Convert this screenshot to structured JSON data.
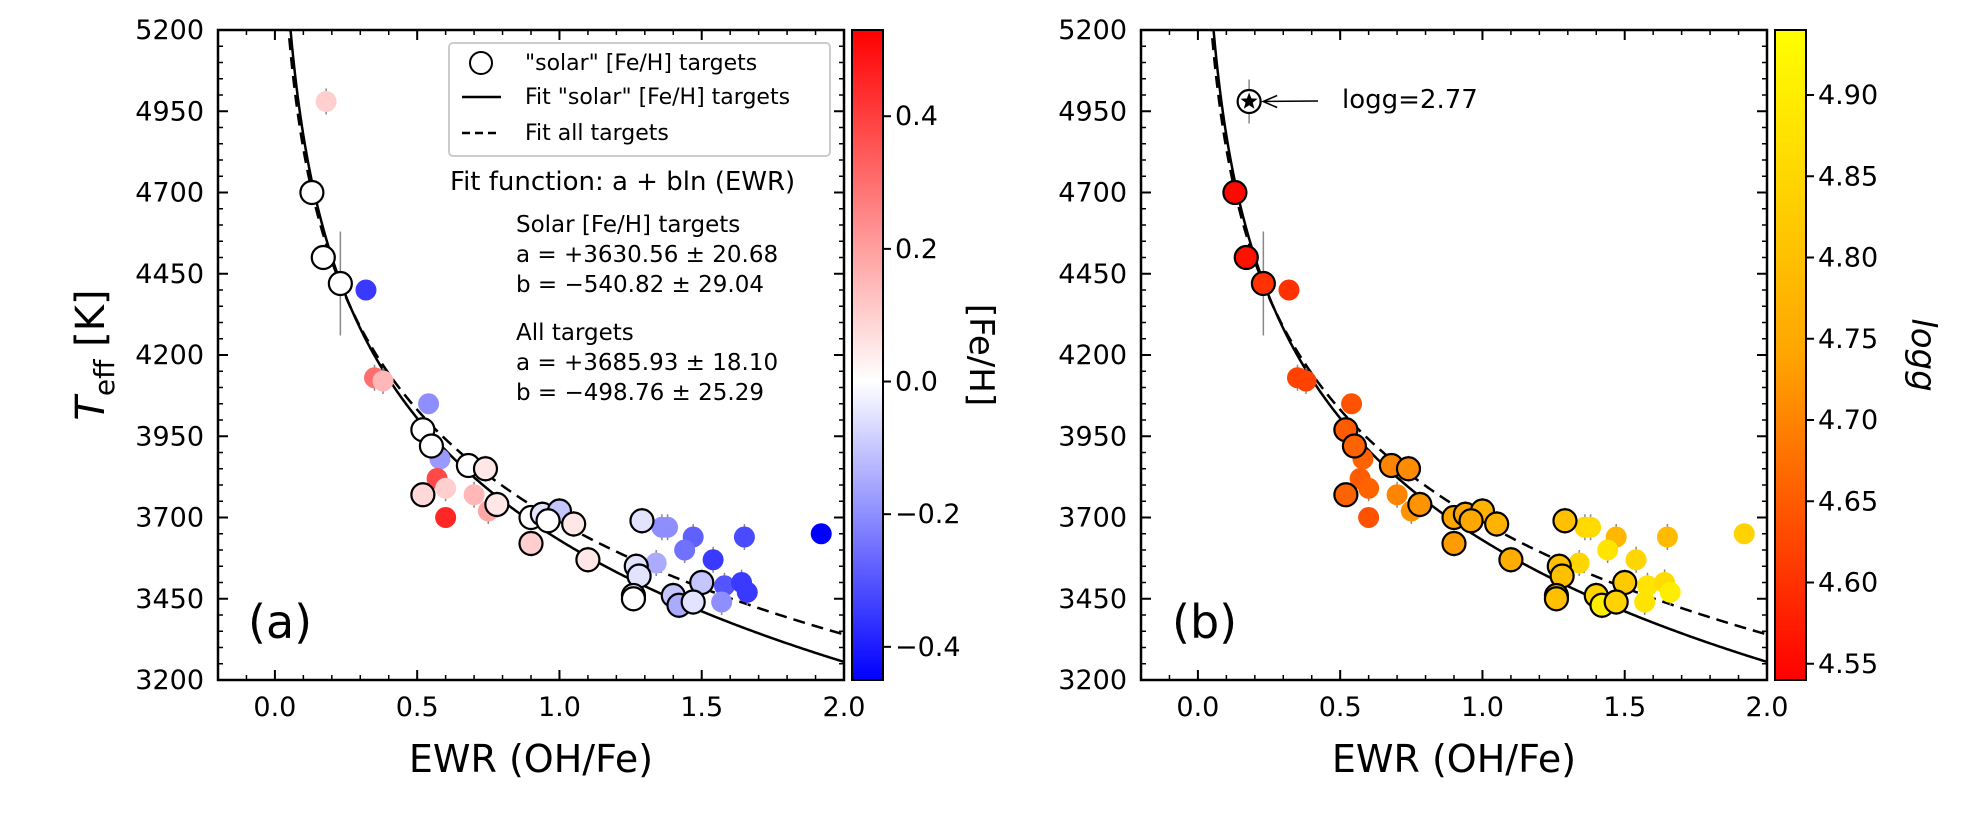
{
  "figure": {
    "panels": [
      {
        "label": "(a)",
        "xlabel": "EWR (OH/Fe)",
        "ylabel_main": "T",
        "ylabel_sub": "eff",
        "ylabel_unit": " [K]",
        "colorbar_label": "[Fe/H]"
      },
      {
        "label": "(b)",
        "xlabel": "EWR (OH/Fe)",
        "colorbar_label": "logg"
      }
    ],
    "legend": {
      "solar_targets": "\"solar\" [Fe/H] targets",
      "fit_solar": "Fit \"solar\" [Fe/H] targets",
      "fit_all": "Fit all targets"
    },
    "annotations": {
      "fit_function": "Fit function: a + bln (EWR)",
      "solar_header": "Solar [Fe/H] targets",
      "solar_a": "a = +3630.56 ± 20.68",
      "solar_b": "b = −540.82 ± 29.04",
      "all_header": "All targets",
      "all_a": "a = +3685.93 ± 18.10",
      "all_b": "b = −498.76 ± 25.29",
      "giant_note": "logg=2.77"
    },
    "colors": {
      "feh_map": [
        "#0000ff",
        "#ffffff",
        "#ff0000"
      ],
      "logg_map": [
        "#ff0000",
        "#ffa500",
        "#ffff00"
      ]
    }
  },
  "chart_data": [
    {
      "type": "scatter",
      "panel": "a",
      "xlabel": "EWR (OH/Fe)",
      "ylabel": "Teff [K]",
      "xlim": [
        -0.2,
        2.0
      ],
      "ylim": [
        3200,
        5200
      ],
      "xticks": [
        0.0,
        0.5,
        1.0,
        1.5,
        2.0
      ],
      "yticks": [
        3200,
        3450,
        3700,
        3950,
        4200,
        4450,
        4700,
        4950,
        5200
      ],
      "legend_position": "upper-right",
      "color_by": "[Fe/H]",
      "colorbar": {
        "label": "[Fe/H]",
        "range": [
          -0.45,
          0.53
        ],
        "ticks": [
          -0.4,
          -0.2,
          0.0,
          0.2,
          0.4
        ]
      },
      "fits": [
        {
          "name": "Fit \"solar\" [Fe/H] targets",
          "style": "solid",
          "a": 3630.56,
          "b": -540.82
        },
        {
          "name": "Fit all targets",
          "style": "dashed",
          "a": 3685.93,
          "b": -498.76
        }
      ],
      "points": [
        {
          "x": 0.18,
          "y": 4980,
          "err": 40,
          "feh": 0.1,
          "solar": false
        },
        {
          "x": 0.13,
          "y": 4700,
          "err": 0,
          "feh": 0.0,
          "solar": true
        },
        {
          "x": 0.17,
          "y": 4500,
          "err": 0,
          "feh": 0.0,
          "solar": true
        },
        {
          "x": 0.23,
          "y": 4420,
          "err": 160,
          "feh": 0.0,
          "solar": true
        },
        {
          "x": 0.32,
          "y": 4400,
          "err": 0,
          "feh": -0.35,
          "solar": false
        },
        {
          "x": 0.35,
          "y": 4130,
          "err": 40,
          "feh": 0.3,
          "solar": false
        },
        {
          "x": 0.38,
          "y": 4120,
          "err": 40,
          "feh": 0.15,
          "solar": false
        },
        {
          "x": 0.54,
          "y": 4050,
          "err": 0,
          "feh": -0.2,
          "solar": false
        },
        {
          "x": 0.52,
          "y": 3970,
          "err": 0,
          "feh": 0.0,
          "solar": true
        },
        {
          "x": 0.55,
          "y": 3920,
          "err": 0,
          "feh": 0.0,
          "solar": true
        },
        {
          "x": 0.58,
          "y": 3880,
          "err": 40,
          "feh": -0.18,
          "solar": false
        },
        {
          "x": 0.68,
          "y": 3860,
          "err": 0,
          "feh": 0.0,
          "solar": true
        },
        {
          "x": 0.74,
          "y": 3850,
          "err": 40,
          "feh": 0.05,
          "solar": true
        },
        {
          "x": 0.57,
          "y": 3820,
          "err": 40,
          "feh": 0.38,
          "solar": false
        },
        {
          "x": 0.6,
          "y": 3790,
          "err": 40,
          "feh": 0.1,
          "solar": false
        },
        {
          "x": 0.52,
          "y": 3770,
          "err": 0,
          "feh": 0.08,
          "solar": true
        },
        {
          "x": 0.7,
          "y": 3770,
          "err": 40,
          "feh": 0.15,
          "solar": false
        },
        {
          "x": 0.78,
          "y": 3740,
          "err": 40,
          "feh": 0.05,
          "solar": true
        },
        {
          "x": 0.75,
          "y": 3720,
          "err": 40,
          "feh": 0.18,
          "solar": false
        },
        {
          "x": 0.6,
          "y": 3700,
          "err": 0,
          "feh": 0.45,
          "solar": false
        },
        {
          "x": 0.9,
          "y": 3700,
          "err": 0,
          "feh": 0.0,
          "solar": true
        },
        {
          "x": 0.94,
          "y": 3710,
          "err": 40,
          "feh": -0.05,
          "solar": true
        },
        {
          "x": 1.0,
          "y": 3720,
          "err": 40,
          "feh": -0.1,
          "solar": true
        },
        {
          "x": 0.96,
          "y": 3690,
          "err": 0,
          "feh": 0.0,
          "solar": true
        },
        {
          "x": 1.05,
          "y": 3680,
          "err": 40,
          "feh": 0.05,
          "solar": true
        },
        {
          "x": 0.9,
          "y": 3620,
          "err": 40,
          "feh": 0.1,
          "solar": true
        },
        {
          "x": 1.1,
          "y": 3570,
          "err": 40,
          "feh": 0.05,
          "solar": true
        },
        {
          "x": 1.29,
          "y": 3690,
          "err": 40,
          "feh": -0.05,
          "solar": true
        },
        {
          "x": 1.36,
          "y": 3670,
          "err": 40,
          "feh": -0.2,
          "solar": false
        },
        {
          "x": 1.38,
          "y": 3670,
          "err": 40,
          "feh": -0.2,
          "solar": false
        },
        {
          "x": 1.47,
          "y": 3640,
          "err": 40,
          "feh": -0.28,
          "solar": false
        },
        {
          "x": 1.65,
          "y": 3640,
          "err": 40,
          "feh": -0.32,
          "solar": false
        },
        {
          "x": 1.92,
          "y": 3650,
          "err": 0,
          "feh": -0.45,
          "solar": false
        },
        {
          "x": 1.44,
          "y": 3600,
          "err": 40,
          "feh": -0.25,
          "solar": false
        },
        {
          "x": 1.54,
          "y": 3570,
          "err": 40,
          "feh": -0.35,
          "solar": false
        },
        {
          "x": 1.27,
          "y": 3550,
          "err": 40,
          "feh": -0.05,
          "solar": true
        },
        {
          "x": 1.34,
          "y": 3560,
          "err": 40,
          "feh": -0.15,
          "solar": false
        },
        {
          "x": 1.28,
          "y": 3520,
          "err": 40,
          "feh": -0.05,
          "solar": true
        },
        {
          "x": 1.5,
          "y": 3500,
          "err": 40,
          "feh": -0.1,
          "solar": true
        },
        {
          "x": 1.58,
          "y": 3490,
          "err": 40,
          "feh": -0.3,
          "solar": false
        },
        {
          "x": 1.64,
          "y": 3500,
          "err": 40,
          "feh": -0.35,
          "solar": false
        },
        {
          "x": 1.66,
          "y": 3470,
          "err": 40,
          "feh": -0.35,
          "solar": false
        },
        {
          "x": 1.26,
          "y": 3460,
          "err": 40,
          "feh": 0.0,
          "solar": true
        },
        {
          "x": 1.26,
          "y": 3450,
          "err": 40,
          "feh": 0.0,
          "solar": true
        },
        {
          "x": 1.4,
          "y": 3460,
          "err": 40,
          "feh": -0.1,
          "solar": true
        },
        {
          "x": 1.42,
          "y": 3430,
          "err": 40,
          "feh": -0.15,
          "solar": true
        },
        {
          "x": 1.47,
          "y": 3440,
          "err": 40,
          "feh": -0.05,
          "solar": true
        },
        {
          "x": 1.57,
          "y": 3440,
          "err": 40,
          "feh": -0.2,
          "solar": false
        }
      ]
    },
    {
      "type": "scatter",
      "panel": "b",
      "xlabel": "EWR (OH/Fe)",
      "xlim": [
        -0.2,
        2.0
      ],
      "ylim": [
        3200,
        5200
      ],
      "xticks": [
        0.0,
        0.5,
        1.0,
        1.5,
        2.0
      ],
      "yticks": [
        3200,
        3450,
        3700,
        3950,
        4200,
        4450,
        4700,
        4950,
        5200
      ],
      "color_by": "logg",
      "colorbar": {
        "label": "logg",
        "range": [
          4.54,
          4.94
        ],
        "ticks": [
          4.55,
          4.6,
          4.65,
          4.7,
          4.75,
          4.8,
          4.85,
          4.9
        ]
      },
      "fits": [
        {
          "name": "Fit \"solar\" [Fe/H] targets",
          "style": "solid",
          "a": 3630.56,
          "b": -540.82
        },
        {
          "name": "Fit all targets",
          "style": "dashed",
          "a": 3685.93,
          "b": -498.76
        }
      ],
      "giant": {
        "x": 0.18,
        "y": 4980,
        "logg": 2.77
      },
      "points": [
        {
          "x": 0.13,
          "y": 4700,
          "err": 0,
          "logg": 4.55,
          "solar": true
        },
        {
          "x": 0.17,
          "y": 4500,
          "err": 0,
          "logg": 4.56,
          "solar": true
        },
        {
          "x": 0.23,
          "y": 4420,
          "err": 160,
          "logg": 4.6,
          "solar": true
        },
        {
          "x": 0.32,
          "y": 4400,
          "err": 0,
          "logg": 4.6,
          "solar": false
        },
        {
          "x": 0.35,
          "y": 4130,
          "err": 40,
          "logg": 4.62,
          "solar": false
        },
        {
          "x": 0.38,
          "y": 4120,
          "err": 40,
          "logg": 4.62,
          "solar": false
        },
        {
          "x": 0.54,
          "y": 4050,
          "err": 0,
          "logg": 4.64,
          "solar": false
        },
        {
          "x": 0.52,
          "y": 3970,
          "err": 0,
          "logg": 4.65,
          "solar": true
        },
        {
          "x": 0.55,
          "y": 3920,
          "err": 0,
          "logg": 4.66,
          "solar": true
        },
        {
          "x": 0.58,
          "y": 3880,
          "err": 40,
          "logg": 4.66,
          "solar": false
        },
        {
          "x": 0.68,
          "y": 3860,
          "err": 0,
          "logg": 4.7,
          "solar": true
        },
        {
          "x": 0.74,
          "y": 3850,
          "err": 40,
          "logg": 4.71,
          "solar": true
        },
        {
          "x": 0.57,
          "y": 3820,
          "err": 40,
          "logg": 4.65,
          "solar": false
        },
        {
          "x": 0.6,
          "y": 3790,
          "err": 40,
          "logg": 4.66,
          "solar": false
        },
        {
          "x": 0.52,
          "y": 3770,
          "err": 0,
          "logg": 4.66,
          "solar": true
        },
        {
          "x": 0.7,
          "y": 3770,
          "err": 40,
          "logg": 4.7,
          "solar": false
        },
        {
          "x": 0.78,
          "y": 3740,
          "err": 40,
          "logg": 4.72,
          "solar": true
        },
        {
          "x": 0.75,
          "y": 3720,
          "err": 40,
          "logg": 4.72,
          "solar": false
        },
        {
          "x": 0.6,
          "y": 3700,
          "err": 0,
          "logg": 4.64,
          "solar": false
        },
        {
          "x": 0.9,
          "y": 3700,
          "err": 0,
          "logg": 4.74,
          "solar": true
        },
        {
          "x": 0.94,
          "y": 3710,
          "err": 40,
          "logg": 4.74,
          "solar": true
        },
        {
          "x": 1.0,
          "y": 3720,
          "err": 40,
          "logg": 4.77,
          "solar": true
        },
        {
          "x": 0.96,
          "y": 3690,
          "err": 0,
          "logg": 4.75,
          "solar": true
        },
        {
          "x": 1.05,
          "y": 3680,
          "err": 40,
          "logg": 4.77,
          "solar": true
        },
        {
          "x": 0.9,
          "y": 3620,
          "err": 40,
          "logg": 4.73,
          "solar": true
        },
        {
          "x": 1.1,
          "y": 3570,
          "err": 40,
          "logg": 4.76,
          "solar": true
        },
        {
          "x": 1.29,
          "y": 3690,
          "err": 40,
          "logg": 4.8,
          "solar": true
        },
        {
          "x": 1.36,
          "y": 3670,
          "err": 40,
          "logg": 4.85,
          "solar": false
        },
        {
          "x": 1.38,
          "y": 3670,
          "err": 40,
          "logg": 4.86,
          "solar": false
        },
        {
          "x": 1.47,
          "y": 3640,
          "err": 40,
          "logg": 4.78,
          "solar": false
        },
        {
          "x": 1.65,
          "y": 3640,
          "err": 40,
          "logg": 4.79,
          "solar": false
        },
        {
          "x": 1.92,
          "y": 3650,
          "err": 0,
          "logg": 4.84,
          "solar": false
        },
        {
          "x": 1.44,
          "y": 3600,
          "err": 40,
          "logg": 4.88,
          "solar": false
        },
        {
          "x": 1.54,
          "y": 3570,
          "err": 40,
          "logg": 4.85,
          "solar": false
        },
        {
          "x": 1.27,
          "y": 3550,
          "err": 40,
          "logg": 4.8,
          "solar": true
        },
        {
          "x": 1.34,
          "y": 3560,
          "err": 40,
          "logg": 4.85,
          "solar": false
        },
        {
          "x": 1.28,
          "y": 3520,
          "err": 40,
          "logg": 4.8,
          "solar": true
        },
        {
          "x": 1.5,
          "y": 3500,
          "err": 40,
          "logg": 4.82,
          "solar": true
        },
        {
          "x": 1.58,
          "y": 3490,
          "err": 40,
          "logg": 4.88,
          "solar": false
        },
        {
          "x": 1.64,
          "y": 3500,
          "err": 40,
          "logg": 4.86,
          "solar": false
        },
        {
          "x": 1.66,
          "y": 3470,
          "err": 40,
          "logg": 4.9,
          "solar": false
        },
        {
          "x": 1.26,
          "y": 3460,
          "err": 40,
          "logg": 4.78,
          "solar": true
        },
        {
          "x": 1.26,
          "y": 3450,
          "err": 40,
          "logg": 4.8,
          "solar": true
        },
        {
          "x": 1.4,
          "y": 3460,
          "err": 40,
          "logg": 4.84,
          "solar": true
        },
        {
          "x": 1.42,
          "y": 3430,
          "err": 40,
          "logg": 4.9,
          "solar": true
        },
        {
          "x": 1.47,
          "y": 3440,
          "err": 40,
          "logg": 4.84,
          "solar": true
        },
        {
          "x": 1.57,
          "y": 3440,
          "err": 40,
          "logg": 4.88,
          "solar": false
        }
      ]
    }
  ]
}
